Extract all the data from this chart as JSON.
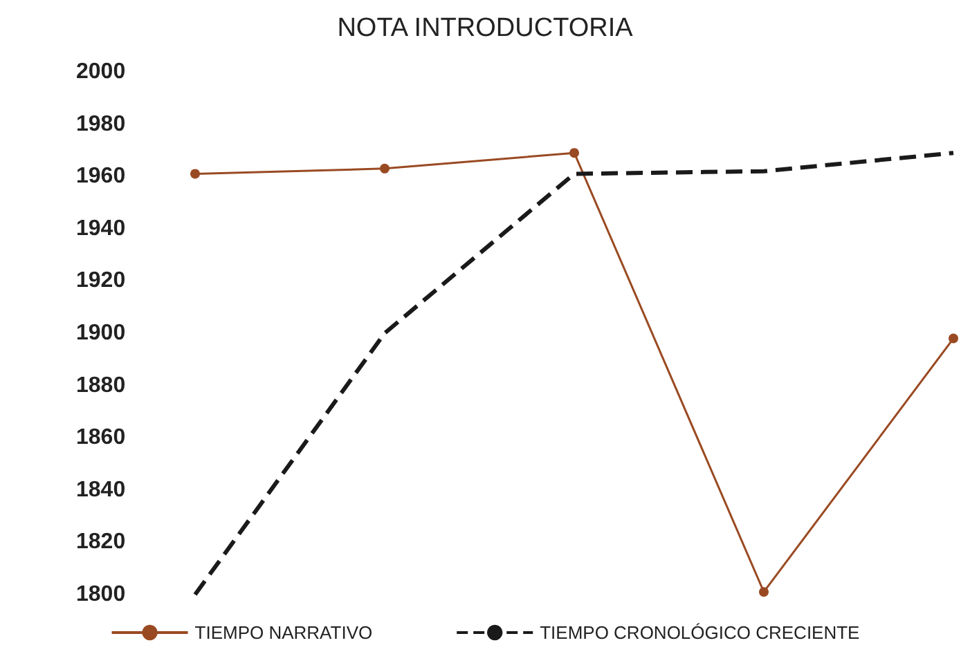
{
  "chart_data": {
    "type": "line",
    "title": "NOTA INTRODUCTORIA",
    "categories": [
      null,
      null,
      null,
      null,
      null
    ],
    "series": [
      {
        "name": "TIEMPO NARRATIVO",
        "color": "#9a4a22",
        "values": [
          1961,
          1963,
          1969,
          1801,
          1898
        ],
        "marker": "circle",
        "line_style": "solid"
      },
      {
        "name": "TIEMPO CRONOLÓGICO CRECIENTE",
        "color": "#1a1a1a",
        "values": [
          1800,
          1900,
          1961,
          1962,
          1969
        ],
        "marker": "none",
        "line_style": "dashed"
      }
    ],
    "ylim": [
      1800,
      2000
    ],
    "yticks": [
      1800,
      1820,
      1840,
      1860,
      1880,
      1900,
      1920,
      1940,
      1960,
      1980,
      2000
    ],
    "grid": false,
    "legend": "bottom",
    "tick_labels": "y"
  }
}
